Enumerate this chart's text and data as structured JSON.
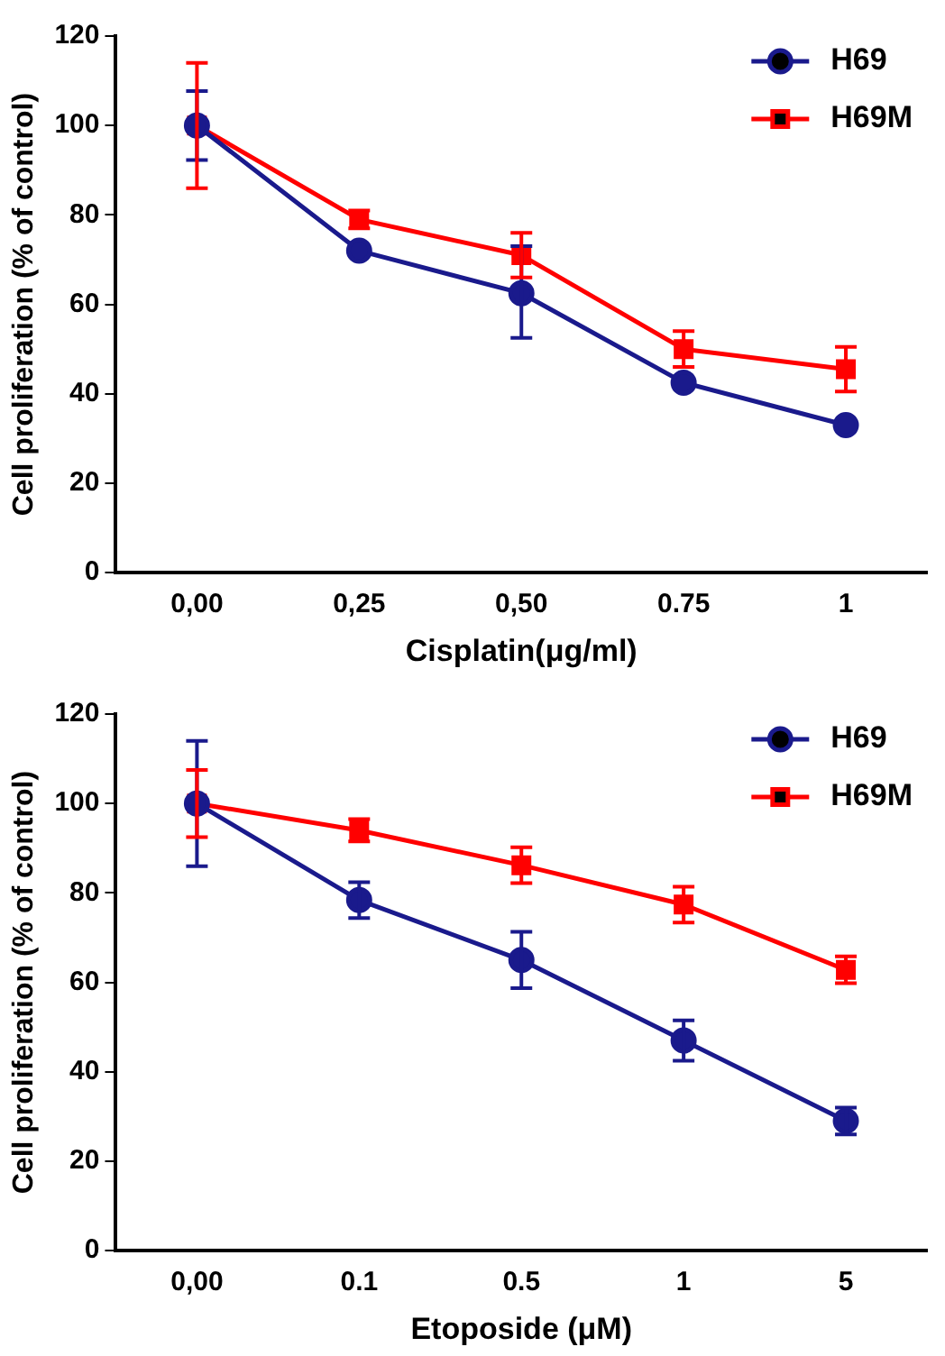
{
  "chart_data": [
    {
      "type": "line",
      "xlabel": "Cisplatin(μg/ml)",
      "ylabel": "Cell proliferation (% of control)",
      "categories": [
        "0,00",
        "0,25",
        "0,50",
        "0.75",
        "1"
      ],
      "series": [
        {
          "name": "H69",
          "color": "#1a1a8c",
          "marker": "circle",
          "values": [
            100,
            72,
            62.5,
            42.5,
            33
          ],
          "errors": [
            7.7,
            null,
            [
              52.5,
              73
            ],
            null,
            null
          ]
        },
        {
          "name": "H69M",
          "color": "#ff0000",
          "marker": "square",
          "values": [
            100,
            79,
            71,
            50,
            45.5
          ],
          "errors": [
            14,
            2,
            5,
            4,
            5
          ]
        }
      ],
      "ylim": [
        0,
        120
      ],
      "yticks": [
        0,
        20,
        40,
        60,
        80,
        100,
        120
      ],
      "grid": false,
      "legend": "top right",
      "line_style": "solid"
    },
    {
      "type": "line",
      "xlabel": "Etoposide (μM)",
      "ylabel": "Cell proliferation (% of control)",
      "categories": [
        "0,00",
        "0.1",
        "0.5",
        "1",
        "5"
      ],
      "series": [
        {
          "name": "H69",
          "color": "#1a1a8c",
          "marker": "circle",
          "values": [
            100,
            78.4,
            65,
            47,
            29
          ],
          "errors": [
            14,
            4,
            6.3,
            4.5,
            3
          ]
        },
        {
          "name": "H69M",
          "color": "#ff0000",
          "marker": "square",
          "values": [
            100,
            94,
            86.2,
            77.4,
            62.8
          ],
          "errors": [
            7.5,
            2.5,
            4,
            4,
            3
          ]
        }
      ],
      "ylim": [
        0,
        120
      ],
      "yticks": [
        0,
        20,
        40,
        60,
        80,
        100,
        120
      ],
      "grid": false,
      "legend": "top right",
      "line_style": "solid"
    }
  ]
}
